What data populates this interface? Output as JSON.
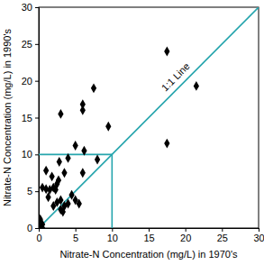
{
  "chart_data": {
    "type": "scatter",
    "x_label": "Nitrate-N Concentration (mg/L) in 1970's",
    "y_label": "Nitrate-N Concentration (mg/L) in 1990's",
    "series": [
      {
        "color": "#000000",
        "marker": "diamond",
        "x": [
          0,
          0.3,
          0.5,
          0.2,
          0.5,
          0.5,
          1,
          1.5,
          1,
          1.3,
          1.8,
          2,
          2.3,
          2,
          2.5,
          2.5,
          2.7,
          2.8,
          3,
          3,
          3,
          3.3,
          3.5,
          3.5,
          4,
          4,
          4.5,
          5,
          5,
          5.5,
          6,
          6,
          6,
          6.2,
          7.5,
          8,
          9.5,
          17.5,
          17.5,
          21.5
        ],
        "values": [
          0.2,
          0,
          0,
          1.2,
          0.5,
          5.5,
          5.3,
          5.2,
          7.8,
          4.2,
          7,
          5.5,
          5.2,
          3,
          3.5,
          6,
          6.5,
          9,
          15.5,
          2.5,
          3.8,
          2.2,
          7.5,
          3,
          9.5,
          3.3,
          4.5,
          11.2,
          3.8,
          3.3,
          16.8,
          16,
          7.5,
          10.5,
          19,
          9.3,
          13.8,
          24,
          11.5,
          19.3
        ]
      }
    ],
    "lines": [
      {
        "label": "1:1 Line",
        "color": "#26a5ad",
        "x": [
          0,
          30
        ],
        "y": [
          0,
          30
        ]
      },
      {
        "color": "#26a5ad",
        "x": [
          0,
          10,
          10
        ],
        "y": [
          10,
          10,
          0
        ]
      }
    ],
    "xlim": [
      0,
      30
    ],
    "ylim": [
      0,
      30
    ],
    "xticks": [
      0,
      5,
      10,
      15,
      20,
      25,
      30
    ],
    "yticks": [
      0,
      5,
      10,
      15,
      20,
      25,
      30
    ]
  }
}
